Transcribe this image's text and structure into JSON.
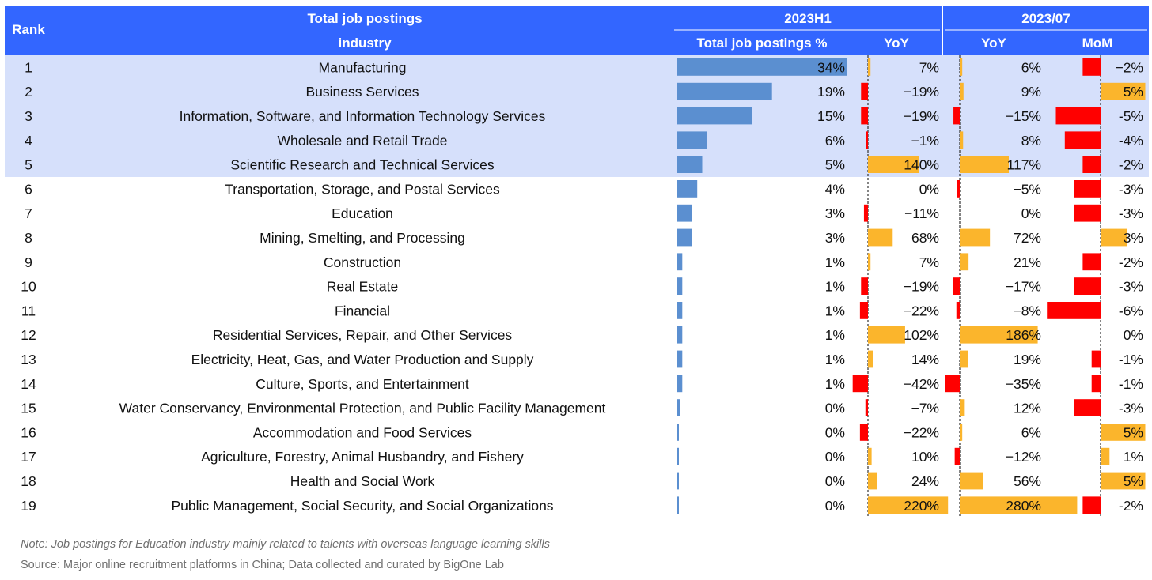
{
  "header": {
    "rank": "Rank",
    "title_line1": "Total job postings",
    "title_line2": "industry",
    "group_h1": "2023H1",
    "group_month": "2023/07",
    "col_share": "Total job postings %",
    "col_h1_yoy": "YoY",
    "col_m_yoy": "YoY",
    "col_m_mom": "MoM"
  },
  "colors": {
    "header_bg": "#3366ff",
    "highlight_row": "#d6e0fb",
    "share_bar": "#5b8fd0",
    "positive_bar": "#fbb52c",
    "negative_bar": "#ff0000"
  },
  "chart_data": {
    "type": "table",
    "columns": [
      "Rank",
      "industry",
      "Total job postings %",
      "2023H1 YoY",
      "2023/07 YoY",
      "2023/07 MoM"
    ],
    "highlighted_ranks": [
      1,
      2,
      3,
      4,
      5
    ],
    "rows": [
      {
        "rank": "1",
        "industry": "Manufacturing",
        "share": 34,
        "share_label": "34%",
        "h1_yoy": 7,
        "h1_yoy_label": "7%",
        "m_yoy": 6,
        "m_yoy_label": "6%",
        "mom": -2,
        "mom_label": "−2%"
      },
      {
        "rank": "2",
        "industry": "Business Services",
        "share": 19,
        "share_label": "19%",
        "h1_yoy": -19,
        "h1_yoy_label": "−19%",
        "m_yoy": 9,
        "m_yoy_label": "9%",
        "mom": 5,
        "mom_label": "5%"
      },
      {
        "rank": "3",
        "industry": "Information, Software, and Information Technology Services",
        "share": 15,
        "share_label": "15%",
        "h1_yoy": -19,
        "h1_yoy_label": "−19%",
        "m_yoy": -15,
        "m_yoy_label": "−15%",
        "mom": -5,
        "mom_label": "-5%"
      },
      {
        "rank": "4",
        "industry": "Wholesale and Retail Trade",
        "share": 6,
        "share_label": "6%",
        "h1_yoy": -1,
        "h1_yoy_label": "−1%",
        "m_yoy": 8,
        "m_yoy_label": "8%",
        "mom": -4,
        "mom_label": "-4%"
      },
      {
        "rank": "5",
        "industry": "Scientific Research and Technical Services",
        "share": 5,
        "share_label": "5%",
        "h1_yoy": 140,
        "h1_yoy_label": "140%",
        "m_yoy": 117,
        "m_yoy_label": "117%",
        "mom": -2,
        "mom_label": "-2%"
      },
      {
        "rank": "6",
        "industry": "Transportation, Storage, and Postal Services",
        "share": 4,
        "share_label": "4%",
        "h1_yoy": 0,
        "h1_yoy_label": "0%",
        "m_yoy": -5,
        "m_yoy_label": "−5%",
        "mom": -3,
        "mom_label": "-3%"
      },
      {
        "rank": "7",
        "industry": "Education",
        "share": 3,
        "share_label": "3%",
        "h1_yoy": -11,
        "h1_yoy_label": "−11%",
        "m_yoy": 0,
        "m_yoy_label": "0%",
        "mom": -3,
        "mom_label": "-3%"
      },
      {
        "rank": "8",
        "industry": "Mining, Smelting, and Processing",
        "share": 3,
        "share_label": "3%",
        "h1_yoy": 68,
        "h1_yoy_label": "68%",
        "m_yoy": 72,
        "m_yoy_label": "72%",
        "mom": 3,
        "mom_label": "3%"
      },
      {
        "rank": "9",
        "industry": "Construction",
        "share": 1,
        "share_label": "1%",
        "h1_yoy": 7,
        "h1_yoy_label": "7%",
        "m_yoy": 21,
        "m_yoy_label": "21%",
        "mom": -2,
        "mom_label": "-2%"
      },
      {
        "rank": "10",
        "industry": "Real Estate",
        "share": 1,
        "share_label": "1%",
        "h1_yoy": -19,
        "h1_yoy_label": "−19%",
        "m_yoy": -17,
        "m_yoy_label": "−17%",
        "mom": -3,
        "mom_label": "-3%"
      },
      {
        "rank": "11",
        "industry": "Financial",
        "share": 1,
        "share_label": "1%",
        "h1_yoy": -22,
        "h1_yoy_label": "−22%",
        "m_yoy": -8,
        "m_yoy_label": "−8%",
        "mom": -6,
        "mom_label": "-6%"
      },
      {
        "rank": "12",
        "industry": "Residential Services, Repair, and Other Services",
        "share": 1,
        "share_label": "1%",
        "h1_yoy": 102,
        "h1_yoy_label": "102%",
        "m_yoy": 186,
        "m_yoy_label": "186%",
        "mom": 0,
        "mom_label": "0%"
      },
      {
        "rank": "13",
        "industry": "Electricity, Heat, Gas, and Water Production and Supply",
        "share": 1,
        "share_label": "1%",
        "h1_yoy": 14,
        "h1_yoy_label": "14%",
        "m_yoy": 19,
        "m_yoy_label": "19%",
        "mom": -1,
        "mom_label": "-1%"
      },
      {
        "rank": "14",
        "industry": "Culture, Sports, and Entertainment",
        "share": 1,
        "share_label": "1%",
        "h1_yoy": -42,
        "h1_yoy_label": "−42%",
        "m_yoy": -35,
        "m_yoy_label": "−35%",
        "mom": -1,
        "mom_label": "-1%"
      },
      {
        "rank": "15",
        "industry": "Water Conservancy, Environmental Protection, and Public Facility Management",
        "share": 0.5,
        "share_label": "0%",
        "h1_yoy": -7,
        "h1_yoy_label": "−7%",
        "m_yoy": 12,
        "m_yoy_label": "12%",
        "mom": -3,
        "mom_label": "-3%"
      },
      {
        "rank": "16",
        "industry": "Accommodation and Food Services",
        "share": 0.3,
        "share_label": "0%",
        "h1_yoy": -22,
        "h1_yoy_label": "−22%",
        "m_yoy": 6,
        "m_yoy_label": "6%",
        "mom": 5,
        "mom_label": "5%"
      },
      {
        "rank": "17",
        "industry": "Agriculture, Forestry, Animal Husbandry, and Fishery",
        "share": 0.3,
        "share_label": "0%",
        "h1_yoy": 10,
        "h1_yoy_label": "10%",
        "m_yoy": -12,
        "m_yoy_label": "−12%",
        "mom": 1,
        "mom_label": "1%"
      },
      {
        "rank": "18",
        "industry": "Health and Social Work",
        "share": 0.3,
        "share_label": "0%",
        "h1_yoy": 24,
        "h1_yoy_label": "24%",
        "m_yoy": 56,
        "m_yoy_label": "56%",
        "mom": 5,
        "mom_label": "5%"
      },
      {
        "rank": "19",
        "industry": "Public Management, Social Security, and Social Organizations",
        "share": 0.3,
        "share_label": "0%",
        "h1_yoy": 220,
        "h1_yoy_label": "220%",
        "m_yoy": 280,
        "m_yoy_label": "280%",
        "mom": -2,
        "mom_label": "-2%"
      }
    ]
  },
  "footer": {
    "note": "Note: Job postings for Education industry mainly related to talents with overseas language learning skills",
    "source": "Source: Major online recruitment platforms in China; Data collected and curated by BigOne Lab"
  }
}
